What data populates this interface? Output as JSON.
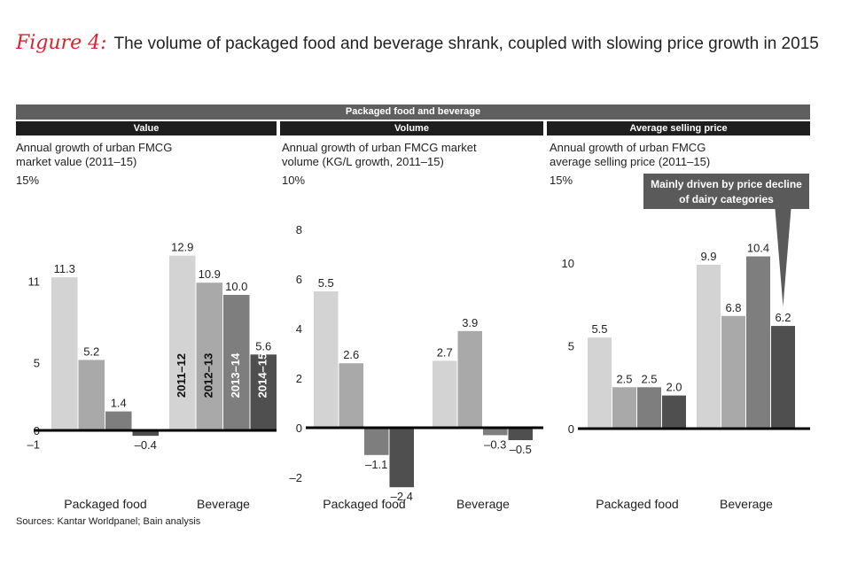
{
  "figure_label": "Figure 4:",
  "title": "The volume of packaged food and beverage shrank, coupled with slowing price growth in 2015",
  "banner": "Packaged food and beverage",
  "source": "Sources: Kantar Worldpanel; Bain analysis",
  "colors": {
    "2011-12": "#d3d3d3",
    "2012-13": "#a9a9a9",
    "2013-14": "#7e7e7e",
    "2014-15": "#4f4f4f",
    "callout": "#5a5a5a",
    "header": "#1e1e1e",
    "banner": "#5f5f5f"
  },
  "panels": [
    {
      "header": "Value",
      "subtitle_line1": "Annual growth of urban FMCG",
      "subtitle_line2": "market value (2011–15)",
      "ymax_label": "15%"
    },
    {
      "header": "Volume",
      "subtitle_line1": "Annual growth of urban FMCG market",
      "subtitle_line2": "volume (KG/L growth, 2011–15)",
      "ymax_label": "10%"
    },
    {
      "header": "Average selling price",
      "subtitle_line1": "Annual growth of urban FMCG",
      "subtitle_line2": "average selling price (2011–15)",
      "ymax_label": "15%"
    }
  ],
  "chart_data": [
    {
      "type": "bar",
      "title": "Value",
      "categories": [
        "Packaged food",
        "Beverage"
      ],
      "series": [
        {
          "name": "2011–12",
          "values": [
            11.3,
            12.9
          ]
        },
        {
          "name": "2012–13",
          "values": [
            5.2,
            10.9
          ]
        },
        {
          "name": "2013–14",
          "values": [
            1.4,
            10.0
          ]
        },
        {
          "name": "2014–15",
          "values": [
            -0.4,
            5.6
          ]
        }
      ],
      "value_labels": [
        [
          "11.3",
          "5.2",
          "1.4",
          "–0.4"
        ],
        [
          "12.9",
          "10.9",
          "10.0",
          "5.6"
        ]
      ],
      "yticks": [
        -1,
        0,
        5,
        11
      ],
      "ytick_labels": [
        "–1",
        "0",
        "5",
        "11"
      ],
      "ylim": [
        -1.5,
        15
      ]
    },
    {
      "type": "bar",
      "title": "Volume",
      "categories": [
        "Packaged food",
        "Beverage"
      ],
      "series": [
        {
          "name": "2011–12",
          "values": [
            5.5,
            2.7
          ]
        },
        {
          "name": "2012–13",
          "values": [
            2.6,
            3.9
          ]
        },
        {
          "name": "2013–14",
          "values": [
            -1.1,
            -0.3
          ]
        },
        {
          "name": "2014–15",
          "values": [
            -2.4,
            -0.5
          ]
        }
      ],
      "value_labels": [
        [
          "5.5",
          "2.6",
          "–1.1",
          "–2.4"
        ],
        [
          "2.7",
          "3.9",
          "–0.3",
          "–0.5"
        ]
      ],
      "yticks": [
        -2,
        0,
        2,
        4,
        6,
        8
      ],
      "ytick_labels": [
        "–2",
        "0",
        "2",
        "4",
        "6",
        "8"
      ],
      "ylim": [
        -2.5,
        10
      ]
    },
    {
      "type": "bar",
      "title": "Average selling price",
      "categories": [
        "Packaged food",
        "Beverage"
      ],
      "series": [
        {
          "name": "2011–12",
          "values": [
            5.5,
            9.9
          ]
        },
        {
          "name": "2012–13",
          "values": [
            2.5,
            6.8
          ]
        },
        {
          "name": "2013–14",
          "values": [
            2.5,
            10.4
          ]
        },
        {
          "name": "2014–15",
          "values": [
            2.0,
            6.2
          ]
        }
      ],
      "value_labels": [
        [
          "5.5",
          "2.5",
          "2.5",
          "2.0"
        ],
        [
          "9.9",
          "6.8",
          "10.4",
          "6.2"
        ]
      ],
      "yticks": [
        0,
        5,
        10
      ],
      "ytick_labels": [
        "0",
        "5",
        "10"
      ],
      "ylim": [
        0,
        15
      ],
      "annotation": {
        "line1": "Mainly driven by price decline",
        "line2": "of dairy categories",
        "target_series": "2014–15",
        "target_category": "Beverage"
      }
    }
  ]
}
